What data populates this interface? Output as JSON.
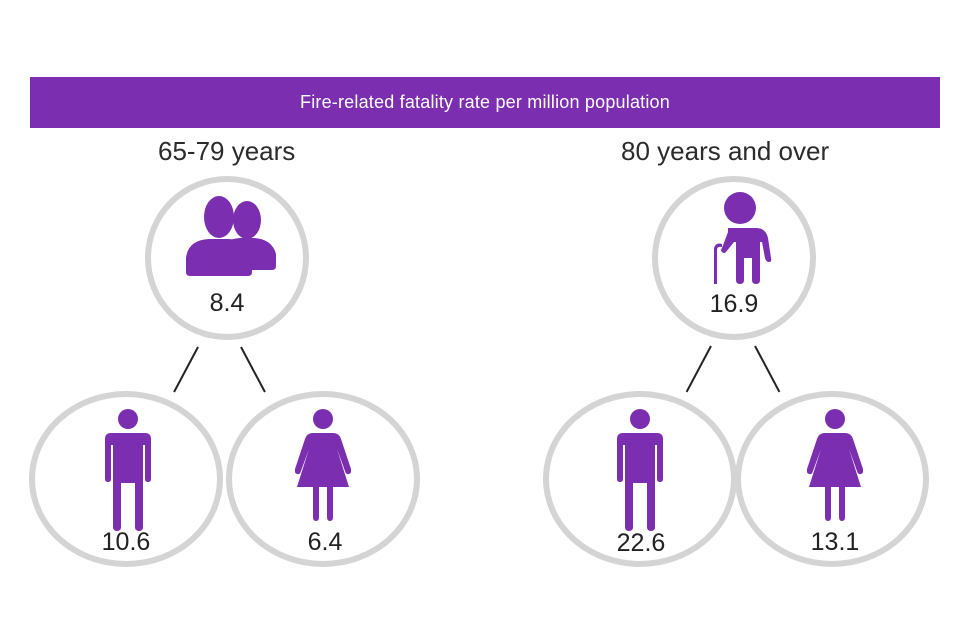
{
  "title": "Fire-related fatality rate per million population",
  "colors": {
    "accent": "#7b2fb0",
    "circle_border": "#d4d4d4",
    "text": "#222222"
  },
  "groups": [
    {
      "label": "65-79 years",
      "total": {
        "icon": "people-icon",
        "value": "8.4"
      },
      "male": {
        "icon": "man-icon",
        "value": "10.6"
      },
      "female": {
        "icon": "woman-icon",
        "value": "6.4"
      }
    },
    {
      "label": "80 years and over",
      "total": {
        "icon": "elderly-person-icon",
        "value": "16.9"
      },
      "male": {
        "icon": "man-icon",
        "value": "22.6"
      },
      "female": {
        "icon": "woman-icon",
        "value": "13.1"
      }
    }
  ]
}
